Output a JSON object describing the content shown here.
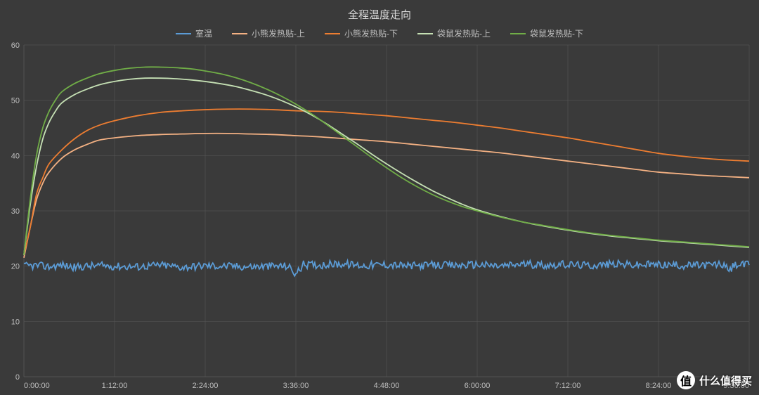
{
  "chart": {
    "type": "line",
    "title": "全程温度走向",
    "title_fontsize": 15,
    "title_color": "#d9d9d9",
    "background_color": "#3a3a3a",
    "plot_background_color": "#3a3a3a",
    "grid_color": "#5a5a5a",
    "axis_color": "#8a8a8a",
    "label_color": "#bfbfbf",
    "label_fontsize": 11,
    "line_width": 1.8,
    "x_domain_minutes": [
      0,
      576
    ],
    "x_ticks_minutes": [
      0,
      72,
      144,
      216,
      288,
      360,
      432,
      504,
      576
    ],
    "x_tick_labels": [
      "0:00:00",
      "1:12:00",
      "2:24:00",
      "3:36:00",
      "4:48:00",
      "6:00:00",
      "7:12:00",
      "8:24:00",
      "9:36:00"
    ],
    "ylim": [
      0,
      60
    ],
    "ytick_step": 10,
    "y_ticks": [
      0,
      10,
      20,
      30,
      40,
      50,
      60
    ],
    "legend_position": "top-center",
    "series": [
      {
        "name": "室温",
        "color": "#5b9bd5",
        "noisy": true,
        "noise_amplitude": 1.4,
        "points": [
          [
            0,
            20.0
          ],
          [
            10,
            20.1
          ],
          [
            20,
            19.9
          ],
          [
            30,
            20.2
          ],
          [
            40,
            19.8
          ],
          [
            50,
            20.0
          ],
          [
            60,
            20.1
          ],
          [
            72,
            20.0
          ],
          [
            90,
            19.9
          ],
          [
            108,
            20.2
          ],
          [
            126,
            19.8
          ],
          [
            144,
            20.1
          ],
          [
            162,
            20.0
          ],
          [
            180,
            19.9
          ],
          [
            198,
            20.0
          ],
          [
            210,
            20.0
          ],
          [
            216,
            18.5
          ],
          [
            222,
            20.3
          ],
          [
            234,
            20.2
          ],
          [
            252,
            20.4
          ],
          [
            270,
            20.1
          ],
          [
            288,
            20.3
          ],
          [
            306,
            20.0
          ],
          [
            324,
            20.2
          ],
          [
            342,
            20.1
          ],
          [
            360,
            20.3
          ],
          [
            378,
            20.0
          ],
          [
            396,
            20.4
          ],
          [
            414,
            20.2
          ],
          [
            432,
            20.3
          ],
          [
            450,
            20.1
          ],
          [
            468,
            20.4
          ],
          [
            486,
            20.2
          ],
          [
            504,
            20.3
          ],
          [
            522,
            20.1
          ],
          [
            540,
            20.2
          ],
          [
            552,
            20.3
          ],
          [
            556,
            20.2
          ],
          [
            560,
            19.0
          ],
          [
            564,
            20.2
          ],
          [
            570,
            20.3
          ],
          [
            576,
            20.2
          ]
        ]
      },
      {
        "name": "小熊发热贴-上",
        "color": "#f4b183",
        "noisy": false,
        "points": [
          [
            0,
            21.5
          ],
          [
            5,
            27
          ],
          [
            10,
            32
          ],
          [
            15,
            35
          ],
          [
            20,
            37
          ],
          [
            30,
            39.5
          ],
          [
            40,
            41
          ],
          [
            50,
            42
          ],
          [
            60,
            42.8
          ],
          [
            72,
            43.2
          ],
          [
            90,
            43.6
          ],
          [
            108,
            43.8
          ],
          [
            126,
            43.9
          ],
          [
            144,
            44.0
          ],
          [
            162,
            44.0
          ],
          [
            180,
            43.9
          ],
          [
            198,
            43.8
          ],
          [
            216,
            43.6
          ],
          [
            234,
            43.4
          ],
          [
            252,
            43.1
          ],
          [
            270,
            42.8
          ],
          [
            288,
            42.5
          ],
          [
            306,
            42.1
          ],
          [
            324,
            41.7
          ],
          [
            342,
            41.3
          ],
          [
            360,
            40.9
          ],
          [
            378,
            40.5
          ],
          [
            396,
            40.0
          ],
          [
            414,
            39.5
          ],
          [
            432,
            39.0
          ],
          [
            450,
            38.5
          ],
          [
            468,
            38.0
          ],
          [
            486,
            37.5
          ],
          [
            504,
            37.0
          ],
          [
            522,
            36.7
          ],
          [
            540,
            36.4
          ],
          [
            558,
            36.2
          ],
          [
            576,
            36.0
          ]
        ]
      },
      {
        "name": "小熊发热贴-下",
        "color": "#ed7d31",
        "noisy": false,
        "points": [
          [
            0,
            22.0
          ],
          [
            5,
            27
          ],
          [
            10,
            33
          ],
          [
            15,
            36
          ],
          [
            20,
            38.5
          ],
          [
            30,
            41
          ],
          [
            40,
            43
          ],
          [
            50,
            44.5
          ],
          [
            60,
            45.5
          ],
          [
            72,
            46.3
          ],
          [
            90,
            47.2
          ],
          [
            108,
            47.8
          ],
          [
            126,
            48.1
          ],
          [
            144,
            48.3
          ],
          [
            162,
            48.4
          ],
          [
            180,
            48.4
          ],
          [
            198,
            48.3
          ],
          [
            216,
            48.1
          ],
          [
            234,
            48.0
          ],
          [
            252,
            47.8
          ],
          [
            270,
            47.5
          ],
          [
            288,
            47.2
          ],
          [
            306,
            46.8
          ],
          [
            324,
            46.4
          ],
          [
            342,
            46.0
          ],
          [
            360,
            45.5
          ],
          [
            378,
            45.0
          ],
          [
            396,
            44.4
          ],
          [
            414,
            43.8
          ],
          [
            432,
            43.2
          ],
          [
            450,
            42.5
          ],
          [
            468,
            41.8
          ],
          [
            486,
            41.1
          ],
          [
            504,
            40.4
          ],
          [
            522,
            39.9
          ],
          [
            540,
            39.5
          ],
          [
            558,
            39.2
          ],
          [
            576,
            39.0
          ]
        ]
      },
      {
        "name": "袋鼠发热贴-上",
        "color": "#c5e0b4",
        "noisy": false,
        "points": [
          [
            0,
            22.0
          ],
          [
            5,
            31
          ],
          [
            10,
            38
          ],
          [
            15,
            43
          ],
          [
            20,
            46
          ],
          [
            25,
            48
          ],
          [
            30,
            49.5
          ],
          [
            40,
            51
          ],
          [
            50,
            52
          ],
          [
            60,
            52.8
          ],
          [
            72,
            53.4
          ],
          [
            84,
            53.8
          ],
          [
            96,
            54.0
          ],
          [
            108,
            54.0
          ],
          [
            120,
            53.9
          ],
          [
            132,
            53.7
          ],
          [
            144,
            53.4
          ],
          [
            156,
            53.0
          ],
          [
            168,
            52.5
          ],
          [
            180,
            51.8
          ],
          [
            192,
            51.0
          ],
          [
            204,
            50.0
          ],
          [
            216,
            48.8
          ],
          [
            228,
            47.4
          ],
          [
            240,
            45.8
          ],
          [
            252,
            44.0
          ],
          [
            264,
            42.2
          ],
          [
            276,
            40.3
          ],
          [
            288,
            38.5
          ],
          [
            300,
            36.8
          ],
          [
            312,
            35.2
          ],
          [
            324,
            33.7
          ],
          [
            336,
            32.4
          ],
          [
            348,
            31.2
          ],
          [
            360,
            30.2
          ],
          [
            378,
            29.0
          ],
          [
            396,
            28.0
          ],
          [
            414,
            27.2
          ],
          [
            432,
            26.5
          ],
          [
            450,
            25.9
          ],
          [
            468,
            25.4
          ],
          [
            486,
            25.0
          ],
          [
            504,
            24.6
          ],
          [
            522,
            24.3
          ],
          [
            540,
            24.0
          ],
          [
            558,
            23.7
          ],
          [
            576,
            23.4
          ]
        ]
      },
      {
        "name": "袋鼠发热贴-下",
        "color": "#70ad47",
        "noisy": false,
        "points": [
          [
            0,
            22.0
          ],
          [
            5,
            32
          ],
          [
            10,
            40
          ],
          [
            15,
            45
          ],
          [
            20,
            48
          ],
          [
            25,
            50
          ],
          [
            30,
            51.5
          ],
          [
            40,
            53
          ],
          [
            50,
            54
          ],
          [
            60,
            54.8
          ],
          [
            72,
            55.4
          ],
          [
            84,
            55.8
          ],
          [
            96,
            56.0
          ],
          [
            108,
            56.0
          ],
          [
            120,
            55.9
          ],
          [
            132,
            55.7
          ],
          [
            144,
            55.3
          ],
          [
            156,
            54.8
          ],
          [
            168,
            54.1
          ],
          [
            180,
            53.2
          ],
          [
            192,
            52.1
          ],
          [
            204,
            50.8
          ],
          [
            216,
            49.3
          ],
          [
            228,
            47.6
          ],
          [
            240,
            45.7
          ],
          [
            252,
            43.7
          ],
          [
            264,
            41.7
          ],
          [
            276,
            39.7
          ],
          [
            288,
            37.8
          ],
          [
            300,
            36.0
          ],
          [
            312,
            34.4
          ],
          [
            324,
            33.0
          ],
          [
            336,
            31.8
          ],
          [
            348,
            30.8
          ],
          [
            360,
            30.0
          ],
          [
            378,
            28.9
          ],
          [
            396,
            28.0
          ],
          [
            414,
            27.3
          ],
          [
            432,
            26.6
          ],
          [
            450,
            26.0
          ],
          [
            468,
            25.5
          ],
          [
            486,
            25.1
          ],
          [
            504,
            24.7
          ],
          [
            522,
            24.4
          ],
          [
            540,
            24.1
          ],
          [
            558,
            23.8
          ],
          [
            576,
            23.5
          ]
        ]
      }
    ]
  },
  "watermark": {
    "badge_char": "值",
    "text": "什么值得买",
    "badge_bg": "#ffffff",
    "text_color": "#ffffff"
  }
}
